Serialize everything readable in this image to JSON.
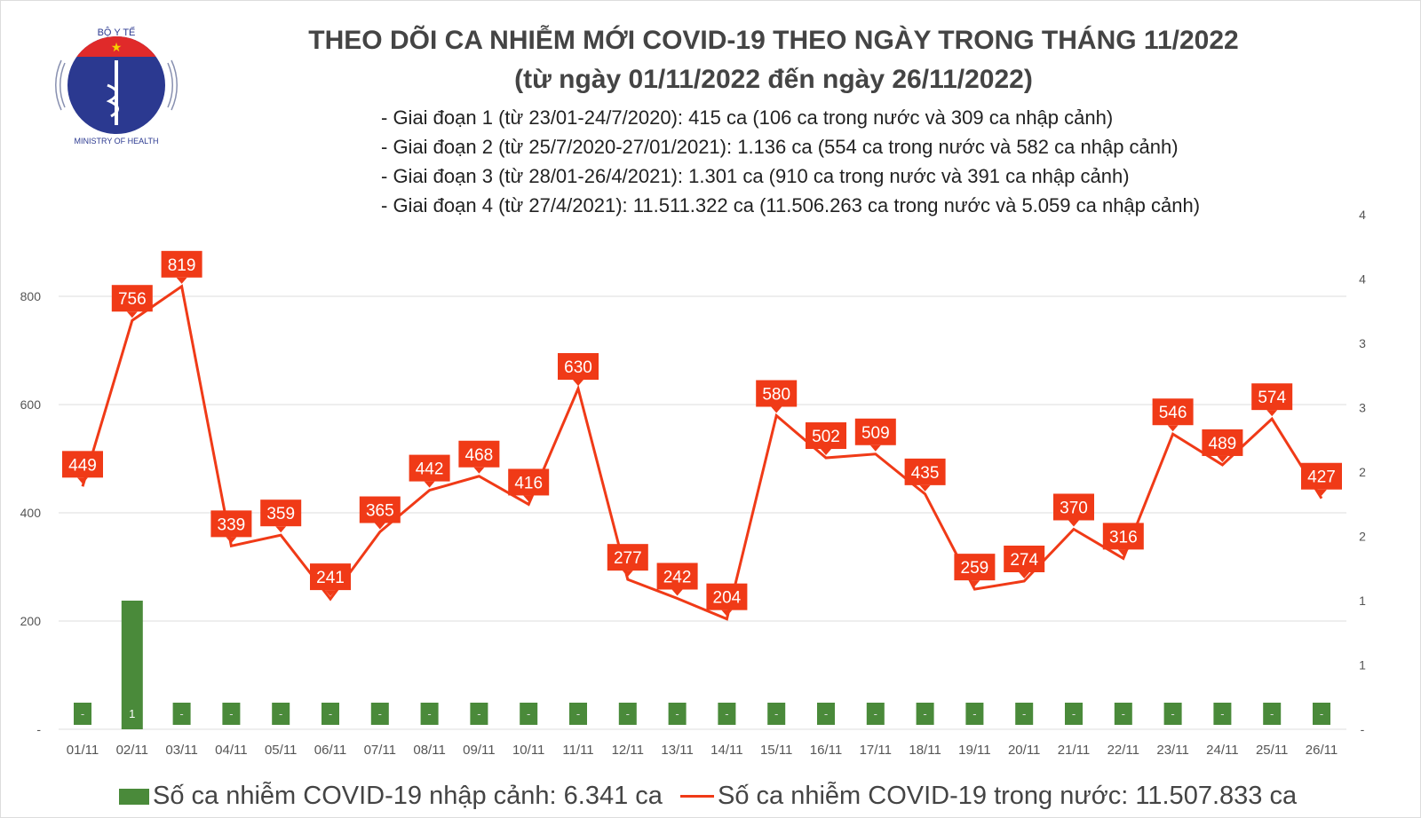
{
  "logo": {
    "top_text": "BỘ Y TẾ",
    "bottom_text": "MINISTRY OF HEALTH"
  },
  "title_line1": "THEO DÕI CA NHIỄM MỚI COVID-19 THEO NGÀY TRONG THÁNG 11/2022",
  "title_line2": "(từ ngày 01/11/2022 đến ngày 26/11/2022)",
  "notes": [
    "- Giai đoạn 1 (từ 23/01-24/7/2020): 415 ca (106 ca trong nước và 309 ca nhập cảnh)",
    "- Giai đoạn 2 (từ 25/7/2020-27/01/2021): 1.136 ca (554 ca trong nước và 582 ca nhập cảnh)",
    "- Giai đoạn 3 (từ 28/01-26/4/2021): 1.301 ca (910 ca trong nước và 391 ca nhập cảnh)",
    "- Giai đoạn 4 (từ 27/4/2021): 11.511.322 ca (11.506.263 ca trong nước và 5.059 ca nhập cảnh)"
  ],
  "chart_data": {
    "type": "bar+line",
    "categories": [
      "01/11",
      "02/11",
      "03/11",
      "04/11",
      "05/11",
      "06/11",
      "07/11",
      "08/11",
      "09/11",
      "10/11",
      "11/11",
      "12/11",
      "13/11",
      "14/11",
      "15/11",
      "16/11",
      "17/11",
      "18/11",
      "19/11",
      "20/11",
      "21/11",
      "22/11",
      "23/11",
      "24/11",
      "25/11",
      "26/11"
    ],
    "series": [
      {
        "name": "Số ca nhiễm COVID-19 nhập cảnh: 6.341 ca",
        "type": "bar",
        "axis": "right",
        "color": "#4a8a3a",
        "values": [
          0,
          1,
          0,
          0,
          0,
          0,
          0,
          0,
          0,
          0,
          0,
          0,
          0,
          0,
          0,
          0,
          0,
          0,
          0,
          0,
          0,
          0,
          0,
          0,
          0,
          0
        ]
      },
      {
        "name": "Số ca nhiễm COVID-19 trong nước: 11.507.833 ca",
        "type": "line",
        "axis": "left",
        "color": "#f03a17",
        "values": [
          449,
          756,
          819,
          339,
          359,
          241,
          365,
          442,
          468,
          416,
          630,
          277,
          242,
          204,
          580,
          502,
          509,
          435,
          259,
          274,
          370,
          316,
          546,
          489,
          574,
          427
        ]
      }
    ],
    "left_axis": {
      "ylim": [
        0,
        1000
      ],
      "ticks": [
        "-",
        "200",
        "400",
        "600",
        "800"
      ]
    },
    "right_axis": {
      "ylim": [
        0,
        4
      ],
      "ticks": [
        "-",
        "1",
        "1",
        "2",
        "2",
        "3",
        "3",
        "4",
        "4"
      ]
    },
    "grid": true,
    "legend": "bottom"
  }
}
